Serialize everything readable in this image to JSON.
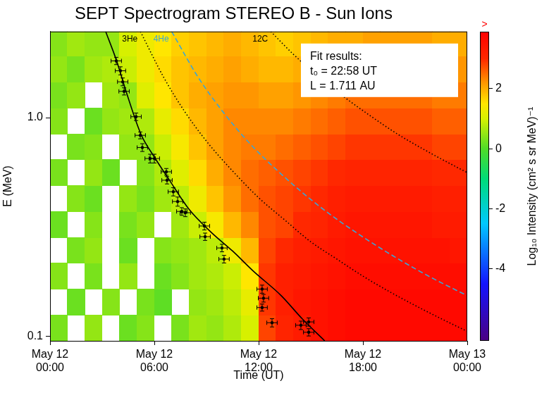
{
  "chart_data": {
    "type": "heatmap",
    "title": "SEPT Spectrogram STEREO B - Sun Ions",
    "x_label": "Time (UT)",
    "y_label": "E (MeV)",
    "xlim": [
      0,
      24
    ],
    "xticks": [
      {
        "value": 0,
        "label": "May 12\n00:00"
      },
      {
        "value": 6,
        "label": "May 12\n06:00"
      },
      {
        "value": 12,
        "label": "May 12\n12:00"
      },
      {
        "value": 18,
        "label": "May 12\n18:00"
      },
      {
        "value": 24,
        "label": "May 13\n00:00"
      }
    ],
    "ylim": [
      0.095,
      2.48
    ],
    "yticks": [
      0.1,
      {
        "value": 1,
        "label": "1.0"
      }
    ],
    "log": "y",
    "grid": false,
    "heatmap": {
      "x_edges": [
        0,
        1,
        2,
        3,
        4,
        5,
        6,
        7,
        8,
        9,
        10,
        11,
        12,
        13,
        14,
        15,
        16,
        17,
        18,
        19,
        20,
        21,
        22,
        23,
        24
      ],
      "y_edges": [
        0.095,
        0.125,
        0.164,
        0.216,
        0.283,
        0.372,
        0.489,
        0.642,
        0.843,
        1.107,
        1.454,
        1.91,
        2.48
      ],
      "z": [
        [
          0.3,
          null,
          0.5,
          null,
          0.2,
          0.4,
          null,
          0.3,
          0.6,
          0.5,
          0.7,
          1.0,
          2.8,
          3.1,
          3.3,
          3.5,
          3.6,
          3.7,
          3.7,
          3.7,
          3.7,
          3.7,
          3.7,
          3.7
        ],
        [
          null,
          0.2,
          null,
          0.4,
          null,
          0.3,
          0.1,
          null,
          0.5,
          0.6,
          0.8,
          1.2,
          2.9,
          3.2,
          3.4,
          3.5,
          3.6,
          3.7,
          3.7,
          3.7,
          3.7,
          3.7,
          3.7,
          3.7
        ],
        [
          0.4,
          null,
          0.3,
          null,
          0.5,
          null,
          0.2,
          0.4,
          0.6,
          0.7,
          0.9,
          1.5,
          2.9,
          3.2,
          3.3,
          3.4,
          3.5,
          3.6,
          3.6,
          3.6,
          3.6,
          3.6,
          3.6,
          3.6
        ],
        [
          null,
          0.3,
          0.5,
          null,
          0.2,
          null,
          0.4,
          0.5,
          0.6,
          0.8,
          1.3,
          1.9,
          2.8,
          3.0,
          3.2,
          3.3,
          3.4,
          3.5,
          3.5,
          3.5,
          3.5,
          3.5,
          3.5,
          3.4
        ],
        [
          0.2,
          null,
          0.4,
          null,
          0.3,
          0.5,
          null,
          0.6,
          0.9,
          1.4,
          1.9,
          2.3,
          2.7,
          2.8,
          3.0,
          3.1,
          3.3,
          3.4,
          3.4,
          3.4,
          3.4,
          3.4,
          3.3,
          3.3
        ],
        [
          null,
          0.4,
          0.2,
          null,
          0.5,
          0.3,
          0.6,
          0.8,
          1.3,
          1.8,
          2.2,
          2.5,
          2.7,
          2.8,
          2.9,
          3.0,
          3.2,
          3.3,
          3.3,
          3.3,
          3.3,
          3.3,
          3.2,
          3.2
        ],
        [
          0.3,
          null,
          0.5,
          0.2,
          null,
          0.4,
          0.7,
          1.1,
          1.6,
          2.0,
          2.3,
          2.5,
          2.6,
          2.7,
          2.8,
          2.9,
          3.0,
          3.1,
          3.1,
          3.1,
          3.1,
          3.1,
          3.0,
          3.0
        ],
        [
          null,
          0.3,
          0.4,
          null,
          0.5,
          0.5,
          0.9,
          1.4,
          1.8,
          2.1,
          2.3,
          2.4,
          2.4,
          2.5,
          2.6,
          2.7,
          2.8,
          2.9,
          2.9,
          2.9,
          2.9,
          2.9,
          2.8,
          2.8
        ],
        [
          0.4,
          null,
          0.2,
          0.5,
          0.6,
          0.7,
          1.2,
          1.6,
          1.9,
          2.1,
          2.3,
          2.3,
          2.3,
          2.3,
          2.4,
          2.5,
          2.6,
          2.7,
          2.7,
          2.7,
          2.7,
          2.7,
          2.6,
          2.6
        ],
        [
          0.3,
          0.5,
          null,
          0.6,
          0.5,
          1.1,
          1.5,
          1.8,
          2.0,
          2.1,
          2.2,
          2.2,
          2.1,
          2.1,
          2.2,
          2.3,
          2.4,
          2.5,
          2.5,
          2.5,
          2.5,
          2.5,
          2.4,
          2.4
        ],
        [
          0.5,
          0.3,
          0.6,
          0.7,
          0.9,
          1.3,
          1.6,
          1.8,
          1.9,
          2.0,
          2.1,
          2.0,
          1.9,
          1.9,
          2.0,
          2.1,
          2.2,
          2.2,
          2.3,
          2.3,
          2.3,
          2.3,
          2.2,
          2.2
        ],
        [
          0.4,
          0.6,
          0.5,
          0.5,
          1.0,
          1.3,
          1.5,
          1.7,
          1.8,
          1.9,
          2.0,
          1.9,
          1.8,
          1.7,
          1.8,
          1.9,
          2.0,
          2.0,
          2.1,
          2.1,
          2.1,
          2.1,
          2.0,
          2.0
        ]
      ]
    },
    "colorbar": {
      "label": "Log₁₀ Intensity (cm² s sr MeV)⁻¹",
      "range": [
        -6.4,
        3.9
      ],
      "ticks": [
        -4,
        -2,
        0,
        2
      ],
      "overflow_label": ">"
    },
    "annotation": [
      "Fit results:",
      "t₀ = 22:58 UT",
      "L = 1.711 AU"
    ],
    "series": [
      {
        "type": "line",
        "line_style": "solid",
        "color": "#000000",
        "x": [
          3.2,
          3.81,
          4.4,
          5.23,
          6.0,
          6.85,
          8.0,
          9.28,
          10.5,
          11.7,
          13.3,
          14.5,
          15.8
        ],
        "values": [
          2.48,
          1.84,
          1.3,
          0.84,
          0.66,
          0.52,
          0.38,
          0.298,
          0.245,
          0.198,
          0.153,
          0.12,
          0.095
        ]
      },
      {
        "name": "3He",
        "type": "line",
        "line_style": "dotted",
        "color": "#000000",
        "x": [
          5.2,
          6.5,
          7.7,
          9.0,
          10.5,
          12.0,
          13.5,
          15.0,
          16.5,
          18.0,
          19.5,
          21.0,
          22.5,
          24.0
        ],
        "values": [
          2.48,
          1.55,
          1.08,
          0.78,
          0.57,
          0.43,
          0.34,
          0.27,
          0.225,
          0.188,
          0.16,
          0.138,
          0.12,
          0.105
        ]
      },
      {
        "name": "4He",
        "type": "line",
        "line_style": "dashed",
        "color": "#3aa6d6",
        "x": [
          7.0,
          8.5,
          10.0,
          11.5,
          13.0,
          14.5,
          16.0,
          18.0,
          20.0,
          22.0,
          24.0
        ],
        "values": [
          2.48,
          1.54,
          1.05,
          0.76,
          0.58,
          0.455,
          0.366,
          0.284,
          0.226,
          0.184,
          0.153
        ]
      },
      {
        "name": "12C",
        "type": "line",
        "line_style": "dotted",
        "color": "#000000",
        "x": [
          12.7,
          14.0,
          15.5,
          17.0,
          18.5,
          20.0,
          22.0,
          24.0
        ],
        "values": [
          2.48,
          1.95,
          1.53,
          1.23,
          1.01,
          0.84,
          0.68,
          0.56
        ]
      },
      {
        "type": "scatter",
        "marker": "circle",
        "color": "#000000",
        "x": [
          3.81,
          4.05,
          4.18,
          4.26,
          4.95,
          5.19,
          5.31,
          5.76,
          6.0,
          6.69,
          6.73,
          7.09,
          7.34,
          7.58,
          7.78,
          8.88,
          8.92,
          9.89,
          10.01,
          12.2,
          12.28,
          12.2,
          12.77,
          14.43,
          14.88,
          14.88
        ],
        "values": [
          1.82,
          1.64,
          1.46,
          1.32,
          1.01,
          0.83,
          0.73,
          0.65,
          0.65,
          0.565,
          0.517,
          0.458,
          0.413,
          0.372,
          0.367,
          0.319,
          0.285,
          0.253,
          0.225,
          0.164,
          0.149,
          0.135,
          0.115,
          0.112,
          0.116,
          0.104
        ],
        "x_err": [
          0.3,
          0.3,
          0.3,
          0.3,
          0.3,
          0.3,
          0.3,
          0.3,
          0.3,
          0.3,
          0.3,
          0.3,
          0.3,
          0.3,
          0.3,
          0.3,
          0.3,
          0.3,
          0.3,
          0.3,
          0.3,
          0.3,
          0.3,
          0.3,
          0.3,
          0.3
        ],
        "y_err": [
          0.07,
          0.07,
          0.06,
          0.05,
          0.04,
          0.03,
          0.03,
          0.03,
          0.03,
          0.02,
          0.02,
          0.02,
          0.02,
          0.015,
          0.015,
          0.013,
          0.011,
          0.01,
          0.009,
          0.007,
          0.006,
          0.005,
          0.005,
          0.005,
          0.005,
          0.004
        ]
      }
    ]
  }
}
